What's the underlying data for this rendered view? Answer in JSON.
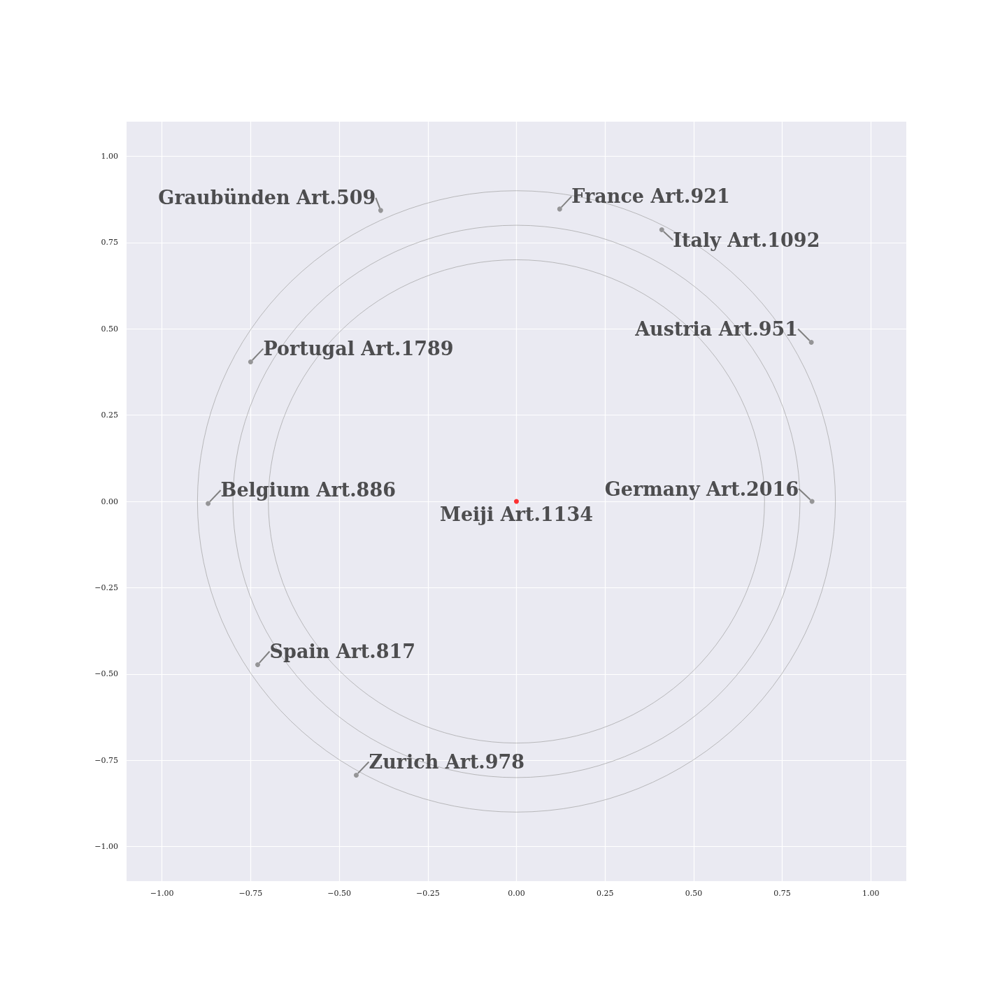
{
  "chart_data": {
    "type": "scatter",
    "xlim": [
      -1.1,
      1.1
    ],
    "ylim": [
      -1.1,
      1.1
    ],
    "xticks": [
      {
        "value": -1,
        "label": "−1.00"
      },
      {
        "value": -0.75,
        "label": "−0.75"
      },
      {
        "value": -0.5,
        "label": "−0.50"
      },
      {
        "value": -0.25,
        "label": "−0.25"
      },
      {
        "value": 0,
        "label": "0.00"
      },
      {
        "value": 0.25,
        "label": "0.25"
      },
      {
        "value": 0.5,
        "label": "0.50"
      },
      {
        "value": 0.75,
        "label": "0.75"
      },
      {
        "value": 1,
        "label": "1.00"
      }
    ],
    "yticks": [
      {
        "value": -1,
        "label": "−1.00"
      },
      {
        "value": -0.75,
        "label": "−0.75"
      },
      {
        "value": -0.5,
        "label": "−0.50"
      },
      {
        "value": -0.25,
        "label": "−0.25"
      },
      {
        "value": 0,
        "label": "0.00"
      },
      {
        "value": 0.25,
        "label": "0.25"
      },
      {
        "value": 0.5,
        "label": "0.50"
      },
      {
        "value": 0.75,
        "label": "0.75"
      },
      {
        "value": 1,
        "label": "1.00"
      }
    ],
    "grid": true,
    "series": [
      {
        "marker": "circle",
        "x": [
          -0.383,
          0.122,
          0.41,
          0.832,
          -0.75,
          -0.87,
          0.834,
          0,
          -0.73,
          -0.452
        ],
        "values": [
          0.843,
          0.847,
          0.787,
          0.461,
          0.404,
          -0.006,
          0,
          0,
          -0.473,
          -0.793
        ],
        "colors": [
          "#808080",
          "#808080",
          "#808080",
          "#808080",
          "#808080",
          "#808080",
          "#808080",
          "#ff0000",
          "#808080",
          "#808080"
        ],
        "value_labels": [
          "Graubünden Art.509",
          "France Art.921",
          "Italy Art.1092",
          "Austria Art.951",
          "Portugal Art.1789",
          "Belgium Art.886",
          "Germany Art.2016",
          "Meiji Art.1134",
          "Spain Art.817",
          "Zurich Art.978"
        ]
      }
    ]
  }
}
